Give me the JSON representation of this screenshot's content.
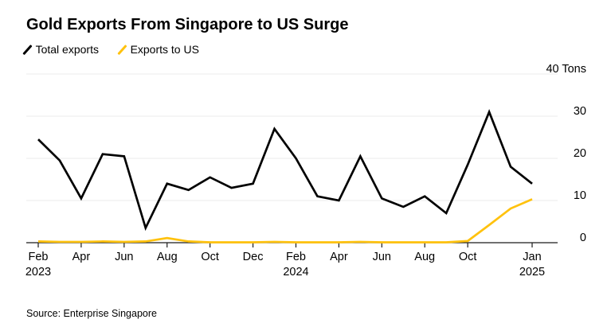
{
  "title": "Gold Exports From Singapore to US Surge",
  "legend": [
    {
      "label": "Total exports",
      "color": "#000000"
    },
    {
      "label": "Exports to US",
      "color": "#FFC20E"
    }
  ],
  "source": "Source: Enterprise Singapore",
  "colors": {
    "axis": "#1a1a1a",
    "gridline": "#ebebeb",
    "background": "#ffffff",
    "total_exports_line": "#000000",
    "exports_to_us_line": "#FFC20E"
  },
  "chart_data": {
    "type": "line",
    "title": "Gold Exports From Singapore to US Surge",
    "ylabel_unit": "Tons",
    "x": [
      "Feb 2023",
      "Mar 2023",
      "Apr 2023",
      "May 2023",
      "Jun 2023",
      "Jul 2023",
      "Aug 2023",
      "Sep 2023",
      "Oct 2023",
      "Nov 2023",
      "Dec 2023",
      "Jan 2024",
      "Feb 2024",
      "Mar 2024",
      "Apr 2024",
      "May 2024",
      "Jun 2024",
      "Jul 2024",
      "Aug 2024",
      "Sep 2024",
      "Oct 2024",
      "Nov 2024",
      "Dec 2024",
      "Jan 2025"
    ],
    "series": [
      {
        "name": "Total exports",
        "color": "#000000",
        "values": [
          24.5,
          19.5,
          10.5,
          21,
          20.5,
          3.5,
          14,
          12.5,
          15.5,
          13,
          14,
          27,
          20,
          11,
          10,
          20.5,
          10.5,
          8.5,
          11,
          7,
          18.5,
          31,
          18,
          14
        ]
      },
      {
        "name": "Exports to US",
        "color": "#FFC20E",
        "values": [
          0.3,
          0.2,
          0.2,
          0.3,
          0.2,
          0.3,
          1.1,
          0.3,
          0.1,
          0.1,
          0.1,
          0.2,
          0.1,
          0.1,
          0.1,
          0.2,
          0.1,
          0.1,
          0.1,
          0.1,
          0.4,
          4.2,
          8.1,
          10.3
        ]
      },
      {
        "name": "_axis_meta",
        "color": "",
        "values": []
      }
    ],
    "ylim": [
      0,
      40
    ],
    "grid": "horizontal-light",
    "legend_position": "top-left",
    "yticks": [
      {
        "v": 0,
        "label": "0"
      },
      {
        "v": 10,
        "label": "10"
      },
      {
        "v": 20,
        "label": "20"
      },
      {
        "v": 30,
        "label": "30"
      },
      {
        "v": 40,
        "label": "40 Tons"
      }
    ],
    "xticks": [
      {
        "i": 0,
        "label": [
          "Feb",
          "2023"
        ]
      },
      {
        "i": 2,
        "label": [
          "Apr"
        ]
      },
      {
        "i": 4,
        "label": [
          "Jun"
        ]
      },
      {
        "i": 6,
        "label": [
          "Aug"
        ]
      },
      {
        "i": 8,
        "label": [
          "Oct"
        ]
      },
      {
        "i": 10,
        "label": [
          "Dec"
        ]
      },
      {
        "i": 12,
        "label": [
          "Feb",
          "2024"
        ]
      },
      {
        "i": 14,
        "label": [
          "Apr"
        ]
      },
      {
        "i": 16,
        "label": [
          "Jun"
        ]
      },
      {
        "i": 18,
        "label": [
          "Aug"
        ]
      },
      {
        "i": 20,
        "label": [
          "Oct"
        ]
      },
      {
        "i": 23,
        "label": [
          "Jan",
          "2025"
        ]
      }
    ]
  }
}
